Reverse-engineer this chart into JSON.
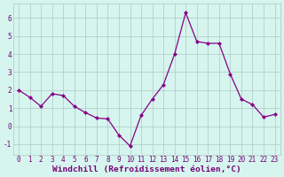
{
  "x": [
    0,
    1,
    2,
    3,
    4,
    5,
    6,
    7,
    8,
    9,
    10,
    11,
    12,
    13,
    14,
    15,
    16,
    17,
    18,
    19,
    20,
    21,
    22,
    23
  ],
  "y": [
    2.0,
    1.6,
    1.1,
    1.8,
    1.7,
    1.1,
    0.75,
    0.45,
    0.4,
    -0.5,
    -1.1,
    0.6,
    1.5,
    2.3,
    4.0,
    6.3,
    4.7,
    4.6,
    4.6,
    2.9,
    1.5,
    1.2,
    0.5,
    0.65
  ],
  "line_color": "#880088",
  "marker": "D",
  "marker_size": 2.2,
  "bg_color": "#d5f5ee",
  "grid_color": "#b0c8c4",
  "xlabel": "Windchill (Refroidissement éolien,°C)",
  "xlim": [
    -0.5,
    23.5
  ],
  "ylim": [
    -1.6,
    6.8
  ],
  "yticks": [
    -1,
    0,
    1,
    2,
    3,
    4,
    5,
    6
  ],
  "xticks": [
    0,
    1,
    2,
    3,
    4,
    5,
    6,
    7,
    8,
    9,
    10,
    11,
    12,
    13,
    14,
    15,
    16,
    17,
    18,
    19,
    20,
    21,
    22,
    23
  ],
  "tick_fontsize": 5.5,
  "xlabel_fontsize": 6.8,
  "label_color": "#770077",
  "linewidth": 0.9
}
